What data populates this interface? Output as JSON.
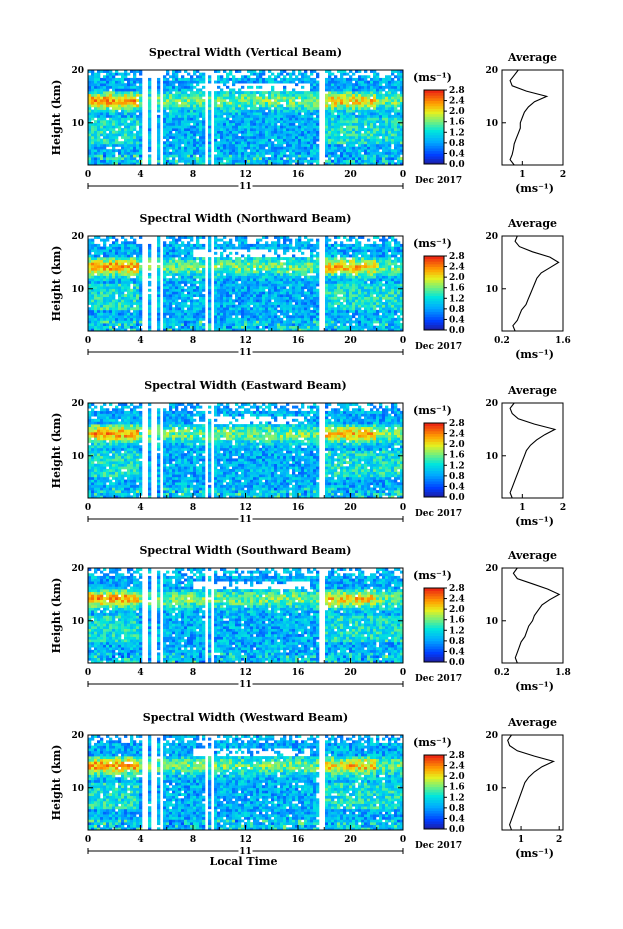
{
  "chart_data": [
    {
      "type": "heatmap",
      "title": "Spectral Width (Vertical Beam)",
      "ylabel": "Height (km)",
      "ylim": [
        2,
        20
      ],
      "yticks": [
        "10",
        "20"
      ],
      "xlim": [
        0,
        24
      ],
      "xticks": [
        "0",
        "4",
        "8",
        "12",
        "16",
        "20",
        "0"
      ],
      "day_label": "11",
      "date_label": "Dec 2017",
      "colorbar": {
        "unit": "(ms⁻¹)",
        "range": [
          0,
          2.8
        ],
        "ticks": [
          "2.8",
          "2.4",
          "2.0",
          "1.6",
          "1.2",
          "0.8",
          "0.4",
          "0.0"
        ]
      },
      "data_gaps_hours": [
        [
          4.2,
          4.5
        ],
        [
          4.9,
          5.2
        ],
        [
          5.5,
          5.7
        ],
        [
          8.9,
          9.1
        ],
        [
          9.4,
          9.6
        ],
        [
          17.5,
          18.0
        ]
      ],
      "profile": {
        "title": "Average",
        "xlabel": "(ms⁻¹)",
        "xlim": [
          0.5,
          2
        ],
        "xticks": [
          "1",
          "2"
        ],
        "ylim": [
          2,
          20
        ],
        "yticks": [
          "10",
          "20"
        ],
        "heights_km": [
          2,
          3,
          4,
          5,
          6,
          7,
          8,
          9,
          10,
          11,
          12,
          13,
          14,
          15,
          16,
          17,
          18,
          19,
          20
        ],
        "values": [
          0.8,
          0.7,
          0.75,
          0.78,
          0.8,
          0.85,
          0.9,
          0.95,
          0.95,
          1.0,
          1.05,
          1.15,
          1.3,
          1.6,
          1.1,
          0.75,
          0.7,
          0.8,
          0.9
        ]
      }
    },
    {
      "type": "heatmap",
      "title": "Spectral Width (Northward Beam)",
      "ylabel": "Height (km)",
      "ylim": [
        2,
        20
      ],
      "yticks": [
        "10",
        "20"
      ],
      "xlim": [
        0,
        24
      ],
      "xticks": [
        "0",
        "4",
        "8",
        "12",
        "16",
        "20",
        "0"
      ],
      "day_label": "11",
      "date_label": "Dec 2017",
      "colorbar": {
        "unit": "(ms⁻¹)",
        "range": [
          0,
          2.8
        ],
        "ticks": [
          "2.8",
          "2.4",
          "2.0",
          "1.6",
          "1.2",
          "0.8",
          "0.4",
          "0.0"
        ]
      },
      "data_gaps_hours": [
        [
          4.2,
          4.5
        ],
        [
          4.9,
          5.2
        ],
        [
          5.5,
          5.7
        ],
        [
          8.9,
          9.1
        ],
        [
          9.4,
          9.6
        ],
        [
          17.5,
          18.0
        ]
      ],
      "profile": {
        "title": "Average",
        "xlabel": "(ms⁻¹)",
        "xlim": [
          0.2,
          1.6
        ],
        "xticks": [
          "0.2",
          "1.6"
        ],
        "ylim": [
          2,
          20
        ],
        "yticks": [
          "10",
          "20"
        ],
        "heights_km": [
          2,
          3,
          4,
          5,
          6,
          7,
          8,
          9,
          10,
          11,
          12,
          13,
          14,
          15,
          16,
          17,
          18,
          19,
          20
        ],
        "values": [
          0.5,
          0.45,
          0.55,
          0.6,
          0.65,
          0.75,
          0.8,
          0.85,
          0.9,
          0.95,
          1.0,
          1.1,
          1.3,
          1.5,
          1.3,
          0.9,
          0.6,
          0.5,
          0.55
        ]
      }
    },
    {
      "type": "heatmap",
      "title": "Spectral Width (Eastward Beam)",
      "ylabel": "Height (km)",
      "ylim": [
        2,
        20
      ],
      "yticks": [
        "10",
        "20"
      ],
      "xlim": [
        0,
        24
      ],
      "xticks": [
        "0",
        "4",
        "8",
        "12",
        "16",
        "20",
        "0"
      ],
      "day_label": "11",
      "date_label": "Dec 2017",
      "colorbar": {
        "unit": "(ms⁻¹)",
        "range": [
          0,
          2.8
        ],
        "ticks": [
          "2.8",
          "2.4",
          "2.0",
          "1.6",
          "1.2",
          "0.8",
          "0.4",
          "0.0"
        ]
      },
      "data_gaps_hours": [
        [
          4.2,
          4.5
        ],
        [
          4.9,
          5.2
        ],
        [
          5.5,
          5.7
        ],
        [
          8.9,
          9.1
        ],
        [
          9.4,
          9.6
        ],
        [
          17.5,
          18.0
        ]
      ],
      "profile": {
        "title": "Average",
        "xlabel": "(ms⁻¹)",
        "xlim": [
          0.5,
          2
        ],
        "xticks": [
          "1",
          "2"
        ],
        "ylim": [
          2,
          20
        ],
        "yticks": [
          "10",
          "20"
        ],
        "heights_km": [
          2,
          3,
          4,
          5,
          6,
          7,
          8,
          9,
          10,
          11,
          12,
          13,
          14,
          15,
          16,
          17,
          18,
          19,
          20
        ],
        "values": [
          0.75,
          0.7,
          0.75,
          0.8,
          0.85,
          0.9,
          0.95,
          1.0,
          1.05,
          1.1,
          1.2,
          1.35,
          1.55,
          1.8,
          1.3,
          0.9,
          0.75,
          0.7,
          0.8
        ]
      }
    },
    {
      "type": "heatmap",
      "title": "Spectral Width (Southward Beam)",
      "ylabel": "Height (km)",
      "ylim": [
        2,
        20
      ],
      "yticks": [
        "10",
        "20"
      ],
      "xlim": [
        0,
        24
      ],
      "xticks": [
        "0",
        "4",
        "8",
        "12",
        "16",
        "20",
        "0"
      ],
      "day_label": "11",
      "date_label": "Dec 2017",
      "colorbar": {
        "unit": "(ms⁻¹)",
        "range": [
          0,
          2.8
        ],
        "ticks": [
          "2.8",
          "2.4",
          "2.0",
          "1.6",
          "1.2",
          "0.8",
          "0.4",
          "0.0"
        ]
      },
      "data_gaps_hours": [
        [
          4.2,
          4.5
        ],
        [
          4.9,
          5.2
        ],
        [
          5.5,
          5.7
        ],
        [
          8.9,
          9.1
        ],
        [
          9.4,
          9.6
        ],
        [
          17.5,
          18.0
        ]
      ],
      "profile": {
        "title": "Average",
        "xlabel": "(ms⁻¹)",
        "xlim": [
          0.2,
          1.8
        ],
        "xticks": [
          "0.2",
          "1.8"
        ],
        "ylim": [
          2,
          20
        ],
        "yticks": [
          "10",
          "20"
        ],
        "heights_km": [
          2,
          3,
          4,
          5,
          6,
          7,
          8,
          9,
          10,
          11,
          12,
          13,
          14,
          15,
          16,
          17,
          18,
          19,
          20
        ],
        "values": [
          0.6,
          0.55,
          0.6,
          0.65,
          0.7,
          0.8,
          0.85,
          0.9,
          1.0,
          1.05,
          1.15,
          1.25,
          1.45,
          1.7,
          1.4,
          1.0,
          0.6,
          0.5,
          0.6
        ]
      }
    },
    {
      "type": "heatmap",
      "title": "Spectral Width (Westward Beam)",
      "ylabel": "Height (km)",
      "ylim": [
        2,
        20
      ],
      "yticks": [
        "10",
        "20"
      ],
      "xlim": [
        0,
        24
      ],
      "xticks": [
        "0",
        "4",
        "8",
        "12",
        "16",
        "20",
        "0"
      ],
      "day_label": "11",
      "date_label": "Dec 2017",
      "xlabel": "Local Time",
      "colorbar": {
        "unit": "(ms⁻¹)",
        "range": [
          0,
          2.8
        ],
        "ticks": [
          "2.8",
          "2.4",
          "2.0",
          "1.6",
          "1.2",
          "0.8",
          "0.4",
          "0.0"
        ]
      },
      "data_gaps_hours": [
        [
          4.2,
          4.5
        ],
        [
          4.9,
          5.2
        ],
        [
          5.5,
          5.7
        ],
        [
          8.9,
          9.1
        ],
        [
          9.4,
          9.6
        ],
        [
          17.5,
          18.0
        ]
      ],
      "profile": {
        "title": "Average",
        "xlabel": "(ms⁻¹)",
        "xlim": [
          0.5,
          2.1
        ],
        "xticks": [
          "1",
          "2"
        ],
        "ylim": [
          2,
          20
        ],
        "yticks": [
          "10",
          "20"
        ],
        "heights_km": [
          2,
          3,
          4,
          5,
          6,
          7,
          8,
          9,
          10,
          11,
          12,
          13,
          14,
          15,
          16,
          17,
          18,
          19,
          20
        ],
        "values": [
          0.75,
          0.7,
          0.75,
          0.8,
          0.85,
          0.9,
          0.95,
          1.0,
          1.05,
          1.1,
          1.2,
          1.35,
          1.55,
          1.85,
          1.35,
          0.9,
          0.7,
          0.65,
          0.75
        ]
      }
    }
  ]
}
